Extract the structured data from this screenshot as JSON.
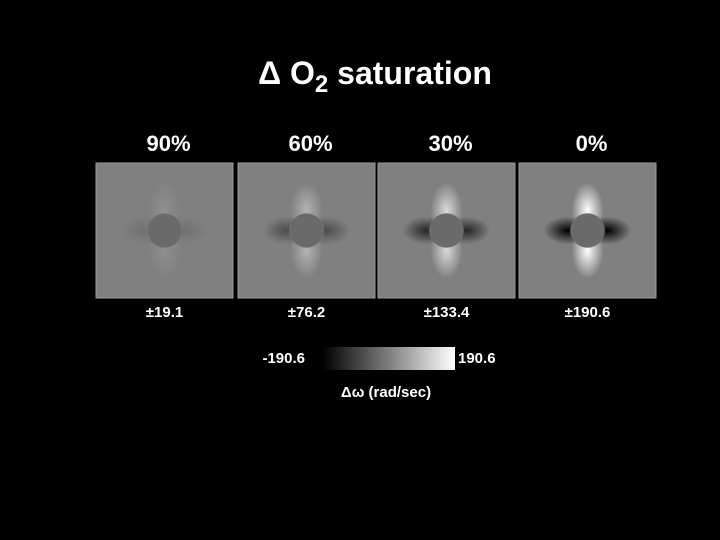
{
  "title": {
    "main": "Δ O",
    "subscript": "2",
    "rest": " saturation"
  },
  "panels": [
    {
      "label": "90%",
      "range": "±19.1"
    },
    {
      "label": "60%",
      "range": "±76.2"
    },
    {
      "label": "30%",
      "range": "±133.4"
    },
    {
      "label": "0%",
      "range": "±190.6"
    }
  ],
  "colorbar": {
    "min_label": "-190.6",
    "max_label": "190.6",
    "axis_label": "Δω (rad/sec)"
  }
}
